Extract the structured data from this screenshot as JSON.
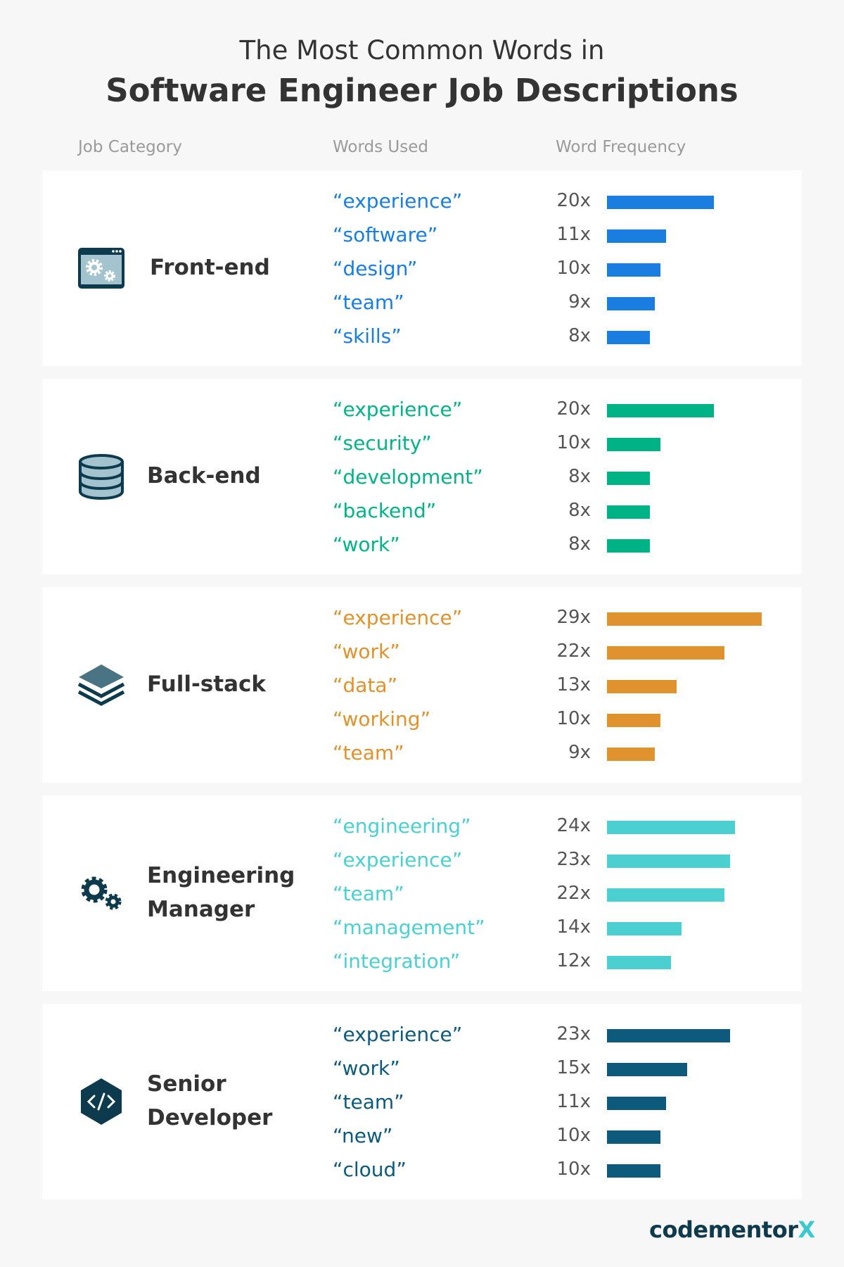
{
  "title_line1": "The Most Common Words in",
  "title_line2": "Software Engineer Job Descriptions",
  "headers": {
    "category": "Job Category",
    "words": "Words Used",
    "frequency": "Word Frequency"
  },
  "logo": {
    "main": "codementor",
    "accent": "X"
  },
  "chart_data": {
    "type": "bar",
    "orientation": "horizontal",
    "unit_suffix": "x",
    "groups": [
      {
        "category": "Front-end",
        "icon": "browser-gears-icon",
        "color": "#1a7de0",
        "words": [
          "“experience”",
          "“software”",
          "“design”",
          "“team”",
          "“skills”"
        ],
        "values": [
          20,
          11,
          10,
          9,
          8
        ]
      },
      {
        "category": "Back-end",
        "icon": "database-icon",
        "color": "#00b386",
        "words": [
          "“experience”",
          "“security”",
          "“development”",
          "“backend”",
          "“work”"
        ],
        "values": [
          20,
          10,
          8,
          8,
          8
        ]
      },
      {
        "category": "Full-stack",
        "icon": "layers-icon",
        "color": "#e0922f",
        "words": [
          "“experience”",
          "“work”",
          "“data”",
          "“working”",
          "“team”"
        ],
        "values": [
          29,
          22,
          13,
          10,
          9
        ]
      },
      {
        "category": "Engineering Manager",
        "icon": "gears-icon",
        "color": "#4ccfd0",
        "words": [
          "“engineering”",
          "“experience”",
          "“team”",
          "“management”",
          "“integration”"
        ],
        "values": [
          24,
          23,
          22,
          14,
          12
        ]
      },
      {
        "category": "Senior Developer",
        "icon": "code-hexagon-icon",
        "color": "#0d5a7d",
        "words": [
          "“experience”",
          "“work”",
          "“team”",
          "“new”",
          "“cloud”"
        ],
        "values": [
          23,
          15,
          11,
          10,
          10
        ]
      }
    ]
  }
}
